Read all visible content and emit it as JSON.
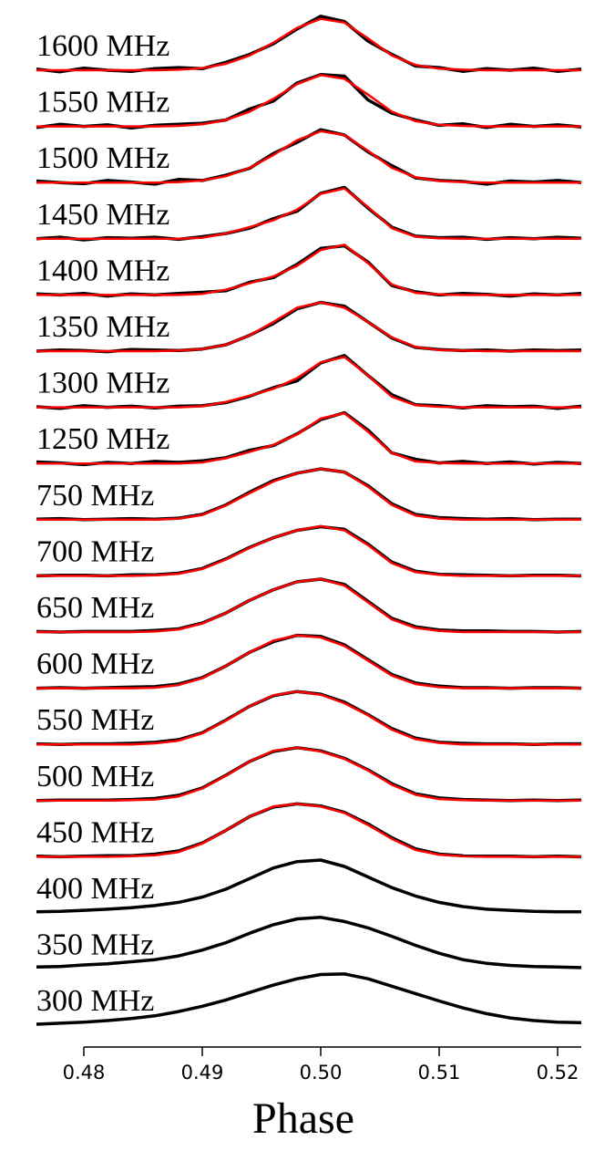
{
  "chart_data": {
    "type": "line",
    "xlabel": "Phase",
    "xlim": [
      0.476,
      0.522
    ],
    "xticks": [
      0.48,
      0.49,
      {
        "value": 0.5,
        "label": "0.50"
      },
      0.51,
      0.52
    ],
    "x": [
      0.476,
      0.478,
      0.48,
      0.482,
      0.484,
      0.486,
      0.488,
      0.49,
      0.492,
      0.494,
      0.496,
      0.498,
      0.5,
      0.502,
      0.504,
      0.506,
      0.508,
      0.51,
      0.512,
      0.514,
      0.516,
      0.518,
      0.52,
      0.522
    ],
    "fit_color": "#ff0000",
    "series": [
      {
        "name": "1600 MHz",
        "color": "#000000",
        "values": [
          0.02,
          -0.03,
          0.04,
          0,
          -0.02,
          0.03,
          0.05,
          0.03,
          0.15,
          0.3,
          0.5,
          0.78,
          1.02,
          0.92,
          0.55,
          0.3,
          0.08,
          0.05,
          -0.02,
          0.03,
          0,
          0.04,
          -0.02,
          0.02
        ],
        "fit": [
          0,
          0,
          0,
          0,
          0,
          0,
          0.01,
          0.04,
          0.12,
          0.28,
          0.52,
          0.8,
          0.97,
          0.9,
          0.6,
          0.28,
          0.1,
          0.03,
          0.01,
          0,
          0,
          0,
          0,
          0
        ]
      },
      {
        "name": "1550 MHz",
        "color": "#000000",
        "values": [
          -0.02,
          0.04,
          0,
          0.03,
          -0.03,
          0.02,
          0.04,
          0.06,
          0.12,
          0.33,
          0.48,
          0.82,
          0.98,
          0.95,
          0.5,
          0.25,
          0.12,
          0.02,
          0.05,
          -0.02,
          0.04,
          0,
          0.03,
          -0.01
        ],
        "fit": [
          0,
          0,
          0,
          0,
          0,
          0,
          0.01,
          0.04,
          0.12,
          0.28,
          0.52,
          0.8,
          0.97,
          0.9,
          0.6,
          0.28,
          0.1,
          0.03,
          0.01,
          0,
          0,
          0,
          0,
          0
        ]
      },
      {
        "name": "1500 MHz",
        "color": "#000000",
        "values": [
          0.03,
          0,
          -0.02,
          0.04,
          0.01,
          -0.03,
          0.06,
          0.04,
          0.14,
          0.27,
          0.55,
          0.76,
          1.0,
          0.9,
          0.58,
          0.32,
          0.09,
          0.04,
          0.02,
          -0.03,
          0.03,
          0.01,
          0.04,
          0
        ],
        "fit": [
          0,
          0,
          0,
          0,
          0,
          0,
          0.01,
          0.04,
          0.12,
          0.28,
          0.52,
          0.8,
          0.97,
          0.9,
          0.6,
          0.28,
          0.1,
          0.03,
          0.01,
          0,
          0,
          0,
          0,
          0
        ]
      },
      {
        "name": "1450 MHz",
        "color": "#000000",
        "values": [
          0,
          0.03,
          -0.02,
          0.02,
          0.01,
          0.03,
          -0.01,
          0.04,
          0.1,
          0.2,
          0.38,
          0.52,
          0.86,
          0.97,
          0.58,
          0.22,
          0.05,
          0.02,
          0.03,
          -0.01,
          0.02,
          0,
          0.03,
          0.01
        ],
        "fit": [
          0,
          0,
          0,
          0,
          0,
          0,
          0,
          0.02,
          0.1,
          0.22,
          0.35,
          0.55,
          0.85,
          0.95,
          0.6,
          0.2,
          0.04,
          0.01,
          0,
          0,
          0,
          0,
          0,
          0
        ]
      },
      {
        "name": "1400 MHz",
        "color": "#000000",
        "values": [
          0.02,
          0,
          0.03,
          -0.02,
          0.02,
          0,
          0.03,
          0.05,
          0.08,
          0.24,
          0.33,
          0.58,
          0.88,
          0.93,
          0.62,
          0.18,
          0.06,
          0,
          0.03,
          0.01,
          -0.02,
          0.02,
          0,
          0.03
        ],
        "fit": [
          0,
          0,
          0,
          0,
          0,
          0,
          0,
          0.02,
          0.1,
          0.22,
          0.35,
          0.55,
          0.85,
          0.95,
          0.6,
          0.2,
          0.04,
          0.01,
          0,
          0,
          0,
          0,
          0,
          0
        ]
      },
      {
        "name": "1350 MHz",
        "color": "#000000",
        "values": [
          0,
          0.02,
          0.01,
          -0.01,
          0.03,
          0.02,
          0.01,
          0.04,
          0.12,
          0.3,
          0.52,
          0.8,
          0.92,
          0.85,
          0.55,
          0.25,
          0.07,
          0.03,
          0.01,
          0.02,
          0,
          0.02,
          0.01,
          0.02
        ],
        "fit": [
          0,
          0,
          0,
          0,
          0,
          0,
          0.01,
          0.04,
          0.12,
          0.3,
          0.55,
          0.82,
          0.92,
          0.82,
          0.55,
          0.26,
          0.08,
          0.02,
          0.01,
          0,
          0,
          0,
          0,
          0
        ]
      },
      {
        "name": "1300 MHz",
        "color": "#000000",
        "values": [
          0.01,
          -0.02,
          0.03,
          0,
          0.02,
          -0.01,
          0.02,
          0.03,
          0.09,
          0.21,
          0.37,
          0.5,
          0.84,
          0.98,
          0.6,
          0.24,
          0.05,
          0.03,
          -0.01,
          0.03,
          0.01,
          0.02,
          -0.02,
          0.02
        ],
        "fit": [
          0,
          0,
          0,
          0,
          0,
          0,
          0,
          0.02,
          0.1,
          0.22,
          0.35,
          0.55,
          0.85,
          0.95,
          0.6,
          0.2,
          0.04,
          0.01,
          0,
          0,
          0,
          0,
          0,
          0
        ]
      },
      {
        "name": "1250 MHz",
        "color": "#000000",
        "values": [
          0.03,
          0.01,
          -0.02,
          0.02,
          0,
          0.04,
          0.02,
          0.05,
          0.11,
          0.25,
          0.34,
          0.56,
          0.83,
          0.96,
          0.63,
          0.2,
          0.08,
          0.01,
          0.04,
          0,
          0.03,
          -0.01,
          0.02,
          0
        ],
        "fit": [
          0,
          0,
          0,
          0,
          0,
          0,
          0,
          0.02,
          0.1,
          0.22,
          0.35,
          0.55,
          0.85,
          0.95,
          0.6,
          0.2,
          0.04,
          0.01,
          0,
          0,
          0,
          0,
          0,
          0
        ]
      },
      {
        "name": "750 MHz",
        "color": "#000000",
        "values": [
          0.01,
          0.02,
          0,
          0.01,
          0.02,
          0.01,
          0.03,
          0.1,
          0.28,
          0.52,
          0.74,
          0.88,
          0.96,
          0.9,
          0.64,
          0.3,
          0.1,
          0.04,
          0.02,
          0.01,
          0.02,
          0,
          0.01,
          0.01
        ],
        "fit": [
          0,
          0,
          0,
          0,
          0,
          0,
          0.02,
          0.09,
          0.27,
          0.5,
          0.72,
          0.88,
          0.96,
          0.9,
          0.62,
          0.28,
          0.08,
          0.02,
          0,
          0,
          0,
          0,
          0,
          0
        ]
      },
      {
        "name": "700 MHz",
        "color": "#000000",
        "values": [
          0,
          0.01,
          0.01,
          0,
          0.02,
          0.02,
          0.05,
          0.14,
          0.32,
          0.54,
          0.72,
          0.86,
          0.93,
          0.88,
          0.6,
          0.26,
          0.09,
          0.03,
          0.02,
          0.01,
          0,
          0.01,
          0.01,
          0
        ],
        "fit": [
          0,
          0,
          0,
          0,
          0,
          0.01,
          0.04,
          0.13,
          0.31,
          0.53,
          0.72,
          0.86,
          0.94,
          0.86,
          0.58,
          0.24,
          0.07,
          0.02,
          0,
          0,
          0,
          0,
          0,
          0
        ]
      },
      {
        "name": "650 MHz",
        "color": "#000000",
        "values": [
          0.01,
          0,
          0.01,
          0.01,
          0.01,
          0.03,
          0.06,
          0.17,
          0.36,
          0.6,
          0.8,
          0.95,
          1.0,
          0.9,
          0.58,
          0.26,
          0.1,
          0.04,
          0.02,
          0.02,
          0.01,
          0.01,
          0,
          0.01
        ],
        "fit": [
          0,
          0,
          0,
          0,
          0,
          0.01,
          0.05,
          0.16,
          0.36,
          0.6,
          0.8,
          0.95,
          1.0,
          0.88,
          0.56,
          0.24,
          0.08,
          0.02,
          0,
          0,
          0,
          0,
          0,
          0
        ]
      },
      {
        "name": "600 MHz",
        "color": "#000000",
        "values": [
          0,
          0.01,
          0,
          0.01,
          0.02,
          0.03,
          0.08,
          0.2,
          0.42,
          0.68,
          0.88,
          1.0,
          0.98,
          0.82,
          0.54,
          0.26,
          0.1,
          0.04,
          0.01,
          0.01,
          0,
          0.01,
          0.01,
          0
        ],
        "fit": [
          0,
          0,
          0,
          0,
          0,
          0.01,
          0.06,
          0.19,
          0.42,
          0.68,
          0.9,
          1.0,
          0.96,
          0.8,
          0.52,
          0.24,
          0.08,
          0.02,
          0,
          0,
          0,
          0,
          0,
          0
        ]
      },
      {
        "name": "550 MHz",
        "color": "#000000",
        "values": [
          0.01,
          0,
          0.01,
          0.01,
          0.02,
          0.04,
          0.09,
          0.22,
          0.46,
          0.72,
          0.92,
          1.0,
          0.95,
          0.8,
          0.56,
          0.3,
          0.12,
          0.04,
          0.02,
          0.01,
          0.01,
          0,
          0.01,
          0.01
        ],
        "fit": [
          0,
          0,
          0,
          0,
          0,
          0.02,
          0.07,
          0.21,
          0.45,
          0.72,
          0.93,
          1.0,
          0.94,
          0.78,
          0.55,
          0.28,
          0.1,
          0.03,
          0,
          0,
          0,
          0,
          0,
          0
        ]
      },
      {
        "name": "500 MHz",
        "color": "#000000",
        "values": [
          0,
          0.01,
          0.01,
          0.01,
          0.02,
          0.04,
          0.1,
          0.24,
          0.48,
          0.74,
          0.93,
          1.0,
          0.94,
          0.8,
          0.58,
          0.32,
          0.13,
          0.05,
          0.02,
          0.01,
          0,
          0.01,
          0,
          0.01
        ],
        "fit": [
          0,
          0,
          0,
          0,
          0.01,
          0.02,
          0.08,
          0.23,
          0.47,
          0.74,
          0.94,
          1.0,
          0.93,
          0.79,
          0.57,
          0.3,
          0.11,
          0.03,
          0.01,
          0,
          0,
          0,
          0,
          0
        ]
      },
      {
        "name": "450 MHz",
        "color": "#000000",
        "values": [
          0.01,
          0,
          0.01,
          0.02,
          0.02,
          0.05,
          0.11,
          0.26,
          0.5,
          0.76,
          0.94,
          1.0,
          0.96,
          0.84,
          0.62,
          0.36,
          0.15,
          0.05,
          0.02,
          0.01,
          0.01,
          0,
          0.01,
          0
        ],
        "fit": [
          0,
          0,
          0,
          0,
          0.01,
          0.03,
          0.09,
          0.25,
          0.5,
          0.76,
          0.95,
          1.0,
          0.95,
          0.83,
          0.6,
          0.34,
          0.13,
          0.04,
          0.01,
          0,
          0,
          0,
          0,
          0
        ]
      },
      {
        "name": "400 MHz",
        "color": "#000000",
        "values": [
          0.02,
          0.03,
          0.05,
          0.07,
          0.1,
          0.14,
          0.2,
          0.3,
          0.45,
          0.65,
          0.85,
          0.97,
          1.0,
          0.88,
          0.68,
          0.48,
          0.32,
          0.2,
          0.12,
          0.07,
          0.05,
          0.03,
          0.02,
          0.02
        ]
      },
      {
        "name": "350 MHz",
        "color": "#000000",
        "values": [
          0.04,
          0.05,
          0.08,
          0.1,
          0.14,
          0.18,
          0.25,
          0.36,
          0.5,
          0.68,
          0.84,
          0.95,
          0.98,
          0.9,
          0.78,
          0.62,
          0.45,
          0.3,
          0.18,
          0.11,
          0.07,
          0.05,
          0.04,
          0.03
        ]
      },
      {
        "name": "300 MHz",
        "color": "#000000",
        "values": [
          0.02,
          0.04,
          0.06,
          0.09,
          0.13,
          0.18,
          0.26,
          0.36,
          0.48,
          0.62,
          0.76,
          0.88,
          0.96,
          0.97,
          0.88,
          0.74,
          0.6,
          0.46,
          0.33,
          0.22,
          0.14,
          0.09,
          0.06,
          0.05
        ]
      }
    ]
  }
}
